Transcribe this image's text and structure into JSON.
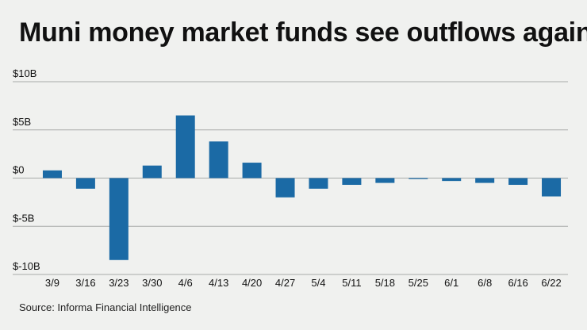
{
  "colors": {
    "bar": "#1b6aa5",
    "grid": "#a7aaa9",
    "background": "#f0f1ef"
  },
  "chart_data": {
    "type": "bar",
    "title": "Muni money market funds see outflows again",
    "xlabel": "",
    "ylabel": "",
    "ylim": [
      -10,
      10
    ],
    "y_ticks": [
      10,
      5,
      0,
      -5,
      -10
    ],
    "y_tick_labels": [
      "$10B",
      "$5B",
      "$0",
      "$-5B",
      "$-10B"
    ],
    "categories": [
      "3/9",
      "3/16",
      "3/23",
      "3/30",
      "4/6",
      "4/13",
      "4/20",
      "4/27",
      "5/4",
      "5/11",
      "5/18",
      "5/25",
      "6/1",
      "6/8",
      "6/16",
      "6/22"
    ],
    "values": [
      0.8,
      -1.1,
      -8.5,
      1.3,
      6.5,
      3.8,
      1.6,
      -2.0,
      -1.1,
      -0.7,
      -0.5,
      -0.1,
      -0.3,
      -0.5,
      -0.7,
      -1.9
    ],
    "units": "billions of dollars",
    "grid": true
  },
  "source": "Source: Informa Financial Intelligence"
}
